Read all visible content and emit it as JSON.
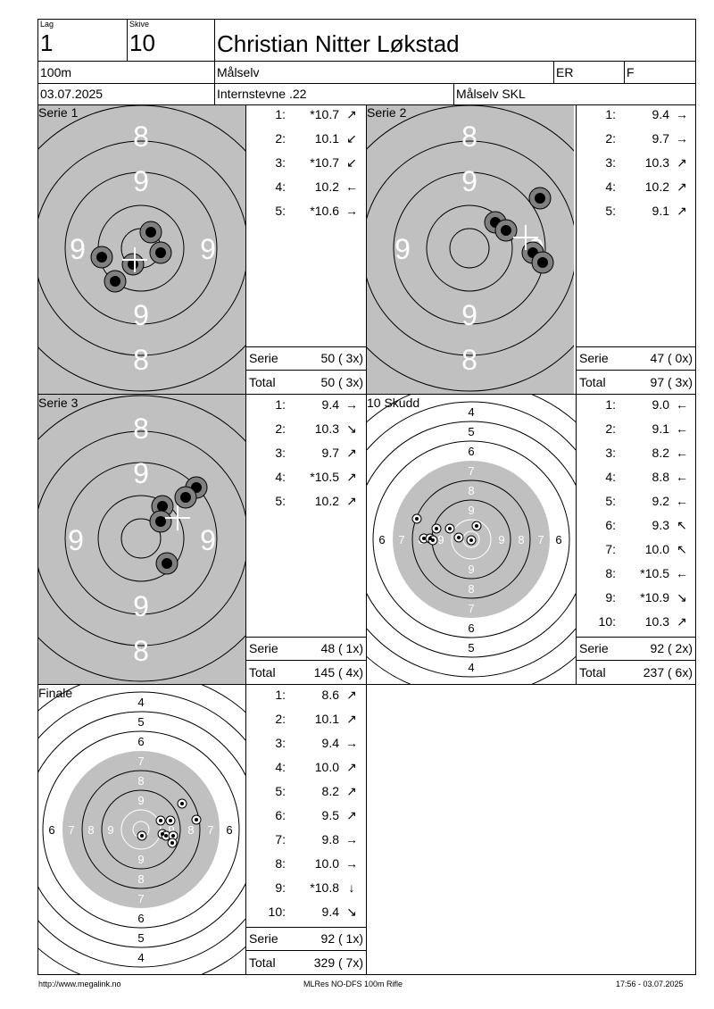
{
  "header": {
    "lag_label": "Lag",
    "lag_value": "1",
    "skive_label": "Skive",
    "skive_value": "10",
    "shooter_name": "Christian Nitter Løkstad",
    "distance": "100m",
    "club": "Målselv",
    "class_code": "ER",
    "class_letter": "F",
    "date": "03.07.2025",
    "event": "Internstevne .22",
    "organizer": "Målselv SKL"
  },
  "series": [
    {
      "title": "Serie 1",
      "shots": [
        {
          "n": "1:",
          "v": "*10.7",
          "dir": "↗"
        },
        {
          "n": "2:",
          "v": "10.1",
          "dir": "↙"
        },
        {
          "n": "3:",
          "v": "*10.7",
          "dir": "↙"
        },
        {
          "n": "4:",
          "v": "10.2",
          "dir": "←"
        },
        {
          "n": "5:",
          "v": "*10.6",
          "dir": "→"
        }
      ],
      "serie_label": "Serie",
      "serie_value": "50 ( 3x)",
      "total_label": "Total",
      "total_value": "50 ( 3x)"
    },
    {
      "title": "Serie 2",
      "shots": [
        {
          "n": "1:",
          "v": "9.4",
          "dir": "→"
        },
        {
          "n": "2:",
          "v": "9.7",
          "dir": "→"
        },
        {
          "n": "3:",
          "v": "10.3",
          "dir": "↗"
        },
        {
          "n": "4:",
          "v": "10.2",
          "dir": "↗"
        },
        {
          "n": "5:",
          "v": "9.1",
          "dir": "↗"
        }
      ],
      "serie_label": "Serie",
      "serie_value": "47 ( 0x)",
      "total_label": "Total",
      "total_value": "97 ( 3x)"
    },
    {
      "title": "Serie 3",
      "shots": [
        {
          "n": "1:",
          "v": "9.4",
          "dir": "→"
        },
        {
          "n": "2:",
          "v": "10.3",
          "dir": "↘"
        },
        {
          "n": "3:",
          "v": "9.7",
          "dir": "↗"
        },
        {
          "n": "4:",
          "v": "*10.5",
          "dir": "↗"
        },
        {
          "n": "5:",
          "v": "10.2",
          "dir": "↗"
        }
      ],
      "serie_label": "Serie",
      "serie_value": "48 ( 1x)",
      "total_label": "Total",
      "total_value": "145 ( 4x)"
    },
    {
      "title": "10 Skudd",
      "shots": [
        {
          "n": "1:",
          "v": "9.0",
          "dir": "←"
        },
        {
          "n": "2:",
          "v": "9.1",
          "dir": "←"
        },
        {
          "n": "3:",
          "v": "8.2",
          "dir": "←"
        },
        {
          "n": "4:",
          "v": "8.8",
          "dir": "←"
        },
        {
          "n": "5:",
          "v": "9.2",
          "dir": "←"
        },
        {
          "n": "6:",
          "v": "9.3",
          "dir": "↖"
        },
        {
          "n": "7:",
          "v": "10.0",
          "dir": "↖"
        },
        {
          "n": "8:",
          "v": "*10.5",
          "dir": "←"
        },
        {
          "n": "9:",
          "v": "*10.9",
          "dir": "↘"
        },
        {
          "n": "10:",
          "v": "10.3",
          "dir": "↗"
        }
      ],
      "serie_label": "Serie",
      "serie_value": "92 ( 2x)",
      "total_label": "Total",
      "total_value": "237 ( 6x)"
    },
    {
      "title": "Finale",
      "shots": [
        {
          "n": "1:",
          "v": "8.6",
          "dir": "↗"
        },
        {
          "n": "2:",
          "v": "10.1",
          "dir": "↗"
        },
        {
          "n": "3:",
          "v": "9.4",
          "dir": "→"
        },
        {
          "n": "4:",
          "v": "10.0",
          "dir": "↗"
        },
        {
          "n": "5:",
          "v": "8.2",
          "dir": "↗"
        },
        {
          "n": "6:",
          "v": "9.5",
          "dir": "↗"
        },
        {
          "n": "7:",
          "v": "9.8",
          "dir": "→"
        },
        {
          "n": "8:",
          "v": "10.0",
          "dir": "→"
        },
        {
          "n": "9:",
          "v": "*10.8",
          "dir": "↓"
        },
        {
          "n": "10:",
          "v": "9.4",
          "dir": "↘"
        }
      ],
      "serie_label": "Serie",
      "serie_value": "92 ( 1x)",
      "total_label": "Total",
      "total_value": "329 ( 7x)"
    }
  ],
  "target_labels": {
    "big": [
      "8",
      "9",
      "9",
      "9",
      "9",
      "8"
    ],
    "small_outer": [
      "4",
      "5",
      "6"
    ],
    "small_inner": [
      "7",
      "8",
      "9"
    ]
  },
  "footer": {
    "url": "http://www.megalink.no",
    "software": "MLRes NO-DFS 100m Rifle",
    "timestamp": "17:56 - 03.07.2025"
  },
  "colors": {
    "target_gray": "#c0c0c0",
    "border": "#000000"
  }
}
